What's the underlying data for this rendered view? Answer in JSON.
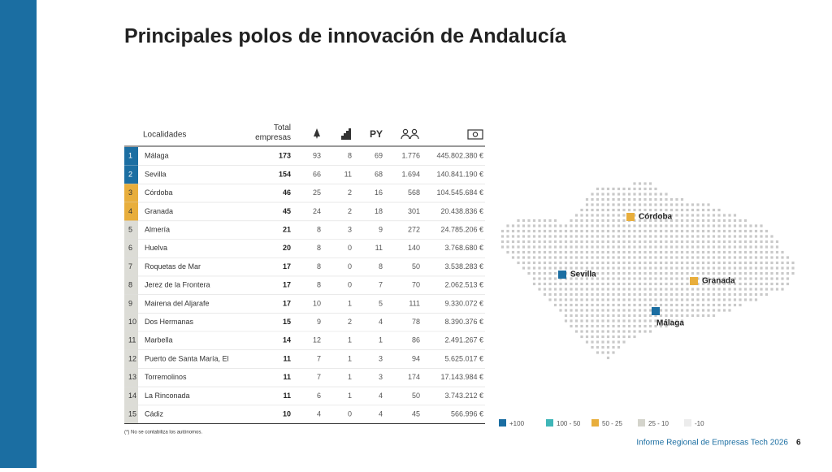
{
  "title": "Principales polos de innovación de Andalucía",
  "table": {
    "headers": {
      "locality": "Localidades",
      "total": "Total empresas",
      "py": "PY"
    },
    "rows": [
      {
        "rank": "1",
        "name": "Málaga",
        "total": "173",
        "c1": "93",
        "c2": "8",
        "c3": "69",
        "c4": "1.776",
        "amount": "445.802.380 €",
        "color": "#1b6ea2"
      },
      {
        "rank": "2",
        "name": "Sevilla",
        "total": "154",
        "c1": "66",
        "c2": "11",
        "c3": "68",
        "c4": "1.694",
        "amount": "140.841.190 €",
        "color": "#1b6ea2"
      },
      {
        "rank": "3",
        "name": "Córdoba",
        "total": "46",
        "c1": "25",
        "c2": "2",
        "c3": "16",
        "c4": "568",
        "amount": "104.545.684 €",
        "color": "#e8ae3c"
      },
      {
        "rank": "4",
        "name": "Granada",
        "total": "45",
        "c1": "24",
        "c2": "2",
        "c3": "18",
        "c4": "301",
        "amount": "20.438.836 €",
        "color": "#e8ae3c"
      },
      {
        "rank": "5",
        "name": "Almería",
        "total": "21",
        "c1": "8",
        "c2": "3",
        "c3": "9",
        "c4": "272",
        "amount": "24.785.206 €",
        "color": "#dcdcd6"
      },
      {
        "rank": "6",
        "name": "Huelva",
        "total": "20",
        "c1": "8",
        "c2": "0",
        "c3": "11",
        "c4": "140",
        "amount": "3.768.680 €",
        "color": "#dcdcd6"
      },
      {
        "rank": "7",
        "name": "Roquetas de Mar",
        "total": "17",
        "c1": "8",
        "c2": "0",
        "c3": "8",
        "c4": "50",
        "amount": "3.538.283 €",
        "color": "#dcdcd6"
      },
      {
        "rank": "8",
        "name": "Jerez de la Frontera",
        "total": "17",
        "c1": "8",
        "c2": "0",
        "c3": "7",
        "c4": "70",
        "amount": "2.062.513 €",
        "color": "#dcdcd6"
      },
      {
        "rank": "9",
        "name": "Mairena del Aljarafe",
        "total": "17",
        "c1": "10",
        "c2": "1",
        "c3": "5",
        "c4": "111",
        "amount": "9.330.072 €",
        "color": "#dcdcd6"
      },
      {
        "rank": "10",
        "name": "Dos Hermanas",
        "total": "15",
        "c1": "9",
        "c2": "2",
        "c3": "4",
        "c4": "78",
        "amount": "8.390.376 €",
        "color": "#dcdcd6"
      },
      {
        "rank": "11",
        "name": "Marbella",
        "total": "14",
        "c1": "12",
        "c2": "1",
        "c3": "1",
        "c4": "86",
        "amount": "2.491.267 €",
        "color": "#dcdcd6"
      },
      {
        "rank": "12",
        "name": "Puerto de Santa María, El",
        "total": "11",
        "c1": "7",
        "c2": "1",
        "c3": "3",
        "c4": "94",
        "amount": "5.625.017 €",
        "color": "#dcdcd6"
      },
      {
        "rank": "13",
        "name": "Torremolinos",
        "total": "11",
        "c1": "7",
        "c2": "1",
        "c3": "3",
        "c4": "174",
        "amount": "17.143.984 €",
        "color": "#dcdcd6"
      },
      {
        "rank": "14",
        "name": "La Rinconada",
        "total": "11",
        "c1": "6",
        "c2": "1",
        "c3": "4",
        "c4": "50",
        "amount": "3.743.212 €",
        "color": "#dcdcd6"
      },
      {
        "rank": "15",
        "name": "Cádiz",
        "total": "10",
        "c1": "4",
        "c2": "0",
        "c3": "4",
        "c4": "45",
        "amount": "566.996 €",
        "color": "#dcdcd6"
      }
    ],
    "footnote": "(*) No se contabiliza los autónomos."
  },
  "map": {
    "cities": [
      {
        "name": "Córdoba",
        "color": "#e8ae3c"
      },
      {
        "name": "Sevilla",
        "color": "#1b6ea2"
      },
      {
        "name": "Granada",
        "color": "#e8ae3c"
      },
      {
        "name": "Málaga",
        "color": "#1b6ea2"
      }
    ],
    "legend": [
      {
        "label": "+100",
        "color": "#1b6ea2"
      },
      {
        "label": "100 - 50",
        "color": "#3fb6b8"
      },
      {
        "label": "50 - 25",
        "color": "#e8ae3c"
      },
      {
        "label": "25 - 10",
        "color": "#d4d4cc"
      },
      {
        "label": "-10",
        "color": "#ececec"
      }
    ]
  },
  "footer": {
    "text": "Informe Regional de Empresas Tech 2026",
    "page": "6"
  }
}
